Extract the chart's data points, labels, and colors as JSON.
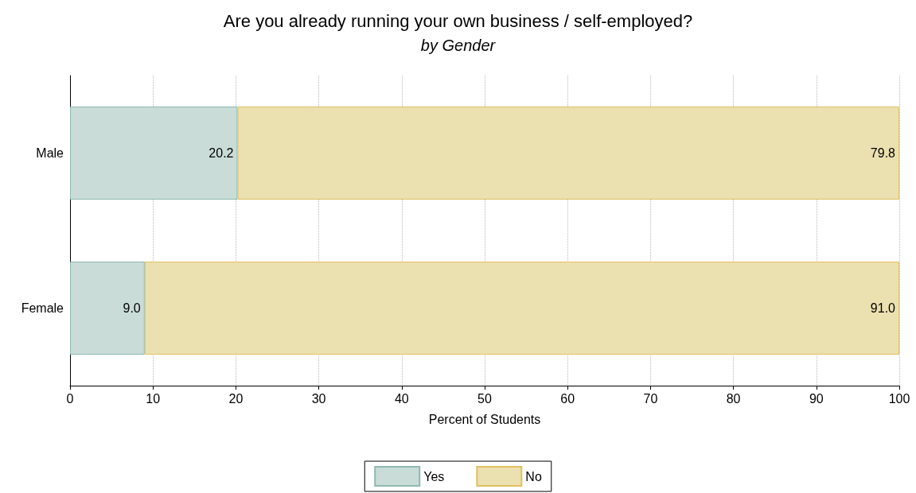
{
  "chart_data": {
    "type": "bar",
    "orientation": "horizontal",
    "stacked": true,
    "title": "Are you already running your own business / self-employed?",
    "subtitle": "by Gender",
    "xlabel": "Percent of Students",
    "categories": [
      "Male",
      "Female"
    ],
    "series": [
      {
        "name": "Yes",
        "color": "#c9dcd8",
        "values": [
          20.2,
          9.0
        ],
        "value_labels": [
          "20.2",
          "9.0"
        ]
      },
      {
        "name": "No",
        "color": "#ebe0b0",
        "values": [
          79.8,
          91.0
        ],
        "value_labels": [
          "79.8",
          "91.0"
        ]
      }
    ],
    "xlim": [
      0,
      100
    ],
    "xticks": [
      0,
      10,
      20,
      30,
      40,
      50,
      60,
      70,
      80,
      90,
      100
    ],
    "grid": "x",
    "legend": "bottom"
  }
}
